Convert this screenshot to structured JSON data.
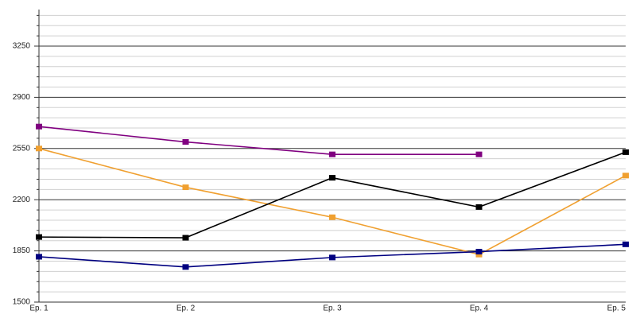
{
  "chart_data": {
    "type": "line",
    "categories": [
      "Ep. 1",
      "Ep. 2",
      "Ep. 3",
      "Ep. 4",
      "Ep. 5"
    ],
    "series": [
      {
        "color": "#800080",
        "values": [
          2700,
          2595,
          2510,
          2510,
          null
        ]
      },
      {
        "color": "#f0a030",
        "values": [
          2550,
          2285,
          2080,
          1825,
          2365
        ]
      },
      {
        "color": "#000000",
        "values": [
          1945,
          1940,
          2350,
          2150,
          2525
        ]
      },
      {
        "color": "#000080",
        "values": [
          1810,
          1740,
          1805,
          1845,
          1895
        ]
      }
    ],
    "ylim": [
      1500,
      3500
    ],
    "yticks": [
      1500,
      1850,
      2200,
      2550,
      2900,
      3250
    ],
    "yminorticks": [
      1570,
      1640,
      1710,
      1780,
      1920,
      1990,
      2060,
      2130,
      2270,
      2340,
      2410,
      2480,
      2620,
      2690,
      2760,
      2830,
      2970,
      3040,
      3110,
      3180,
      3320,
      3390,
      3460
    ],
    "grid": true
  }
}
